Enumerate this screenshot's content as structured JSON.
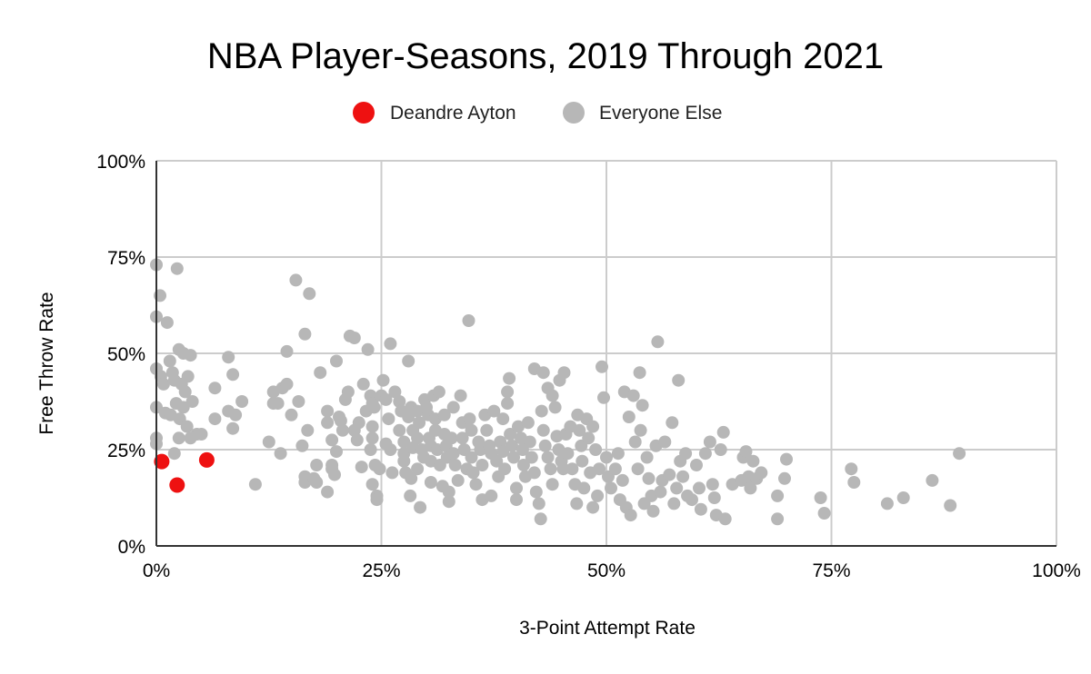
{
  "chart_data": {
    "type": "scatter",
    "title": "NBA Player-Seasons, 2019 Through 2021",
    "xlabel": "3-Point Attempt Rate",
    "ylabel": "Free Throw Rate",
    "xlim": [
      0,
      1
    ],
    "ylim": [
      0,
      1
    ],
    "x_ticks": [
      "0%",
      "25%",
      "50%",
      "75%",
      "100%"
    ],
    "y_ticks": [
      "0%",
      "25%",
      "50%",
      "75%",
      "100%"
    ],
    "grid": true,
    "legend_position": "top",
    "series": [
      {
        "name": "Deandre Ayton",
        "color": "#ee1111",
        "points": [
          [
            0.006,
            0.219
          ],
          [
            0.023,
            0.158
          ],
          [
            0.056,
            0.223
          ]
        ]
      },
      {
        "name": "Everyone Else",
        "color": "#b7b7b7",
        "points": [
          [
            0.0,
            0.73
          ],
          [
            0.0,
            0.595
          ],
          [
            0.004,
            0.65
          ],
          [
            0.023,
            0.72
          ],
          [
            0.012,
            0.58
          ],
          [
            0.0,
            0.46
          ],
          [
            0.005,
            0.44
          ],
          [
            0.008,
            0.42
          ],
          [
            0.01,
            0.345
          ],
          [
            0.0,
            0.36
          ],
          [
            0.0,
            0.28
          ],
          [
            0.0,
            0.265
          ],
          [
            0.015,
            0.48
          ],
          [
            0.018,
            0.45
          ],
          [
            0.025,
            0.51
          ],
          [
            0.03,
            0.5
          ],
          [
            0.038,
            0.495
          ],
          [
            0.02,
            0.43
          ],
          [
            0.028,
            0.42
          ],
          [
            0.035,
            0.44
          ],
          [
            0.032,
            0.4
          ],
          [
            0.022,
            0.37
          ],
          [
            0.03,
            0.36
          ],
          [
            0.04,
            0.375
          ],
          [
            0.016,
            0.34
          ],
          [
            0.026,
            0.33
          ],
          [
            0.034,
            0.31
          ],
          [
            0.045,
            0.29
          ],
          [
            0.05,
            0.29
          ],
          [
            0.038,
            0.28
          ],
          [
            0.025,
            0.28
          ],
          [
            0.02,
            0.24
          ],
          [
            0.065,
            0.41
          ],
          [
            0.065,
            0.33
          ],
          [
            0.08,
            0.49
          ],
          [
            0.085,
            0.445
          ],
          [
            0.08,
            0.35
          ],
          [
            0.088,
            0.34
          ],
          [
            0.095,
            0.375
          ],
          [
            0.085,
            0.305
          ],
          [
            0.11,
            0.16
          ],
          [
            0.125,
            0.27
          ],
          [
            0.13,
            0.37
          ],
          [
            0.13,
            0.4
          ],
          [
            0.135,
            0.37
          ],
          [
            0.14,
            0.41
          ],
          [
            0.145,
            0.42
          ],
          [
            0.138,
            0.24
          ],
          [
            0.145,
            0.505
          ],
          [
            0.155,
            0.69
          ],
          [
            0.165,
            0.55
          ],
          [
            0.17,
            0.655
          ],
          [
            0.15,
            0.34
          ],
          [
            0.158,
            0.375
          ],
          [
            0.162,
            0.26
          ],
          [
            0.168,
            0.3
          ],
          [
            0.165,
            0.18
          ],
          [
            0.165,
            0.165
          ],
          [
            0.175,
            0.175
          ],
          [
            0.178,
            0.21
          ],
          [
            0.178,
            0.165
          ],
          [
            0.182,
            0.45
          ],
          [
            0.19,
            0.35
          ],
          [
            0.19,
            0.32
          ],
          [
            0.19,
            0.14
          ],
          [
            0.195,
            0.2
          ],
          [
            0.198,
            0.185
          ],
          [
            0.195,
            0.21
          ],
          [
            0.195,
            0.275
          ],
          [
            0.2,
            0.245
          ],
          [
            0.2,
            0.48
          ],
          [
            0.203,
            0.335
          ],
          [
            0.205,
            0.325
          ],
          [
            0.207,
            0.3
          ],
          [
            0.21,
            0.38
          ],
          [
            0.213,
            0.4
          ],
          [
            0.215,
            0.545
          ],
          [
            0.22,
            0.54
          ],
          [
            0.22,
            0.3
          ],
          [
            0.223,
            0.275
          ],
          [
            0.225,
            0.32
          ],
          [
            0.23,
            0.42
          ],
          [
            0.228,
            0.205
          ],
          [
            0.233,
            0.35
          ],
          [
            0.235,
            0.51
          ],
          [
            0.238,
            0.39
          ],
          [
            0.24,
            0.37
          ],
          [
            0.242,
            0.36
          ],
          [
            0.24,
            0.31
          ],
          [
            0.24,
            0.28
          ],
          [
            0.238,
            0.25
          ],
          [
            0.24,
            0.16
          ],
          [
            0.245,
            0.13
          ],
          [
            0.245,
            0.12
          ],
          [
            0.243,
            0.21
          ],
          [
            0.248,
            0.2
          ],
          [
            0.25,
            0.39
          ],
          [
            0.252,
            0.43
          ],
          [
            0.255,
            0.38
          ],
          [
            0.258,
            0.33
          ],
          [
            0.255,
            0.265
          ],
          [
            0.26,
            0.25
          ],
          [
            0.26,
            0.525
          ],
          [
            0.262,
            0.19
          ],
          [
            0.265,
            0.4
          ],
          [
            0.27,
            0.375
          ],
          [
            0.272,
            0.35
          ],
          [
            0.27,
            0.3
          ],
          [
            0.275,
            0.27
          ],
          [
            0.275,
            0.24
          ],
          [
            0.275,
            0.22
          ],
          [
            0.277,
            0.19
          ],
          [
            0.28,
            0.48
          ],
          [
            0.28,
            0.335
          ],
          [
            0.283,
            0.36
          ],
          [
            0.285,
            0.3
          ],
          [
            0.285,
            0.255
          ],
          [
            0.283,
            0.175
          ],
          [
            0.282,
            0.13
          ],
          [
            0.29,
            0.35
          ],
          [
            0.292,
            0.32
          ],
          [
            0.29,
            0.28
          ],
          [
            0.29,
            0.2
          ],
          [
            0.293,
            0.1
          ],
          [
            0.295,
            0.25
          ],
          [
            0.297,
            0.23
          ],
          [
            0.298,
            0.38
          ],
          [
            0.3,
            0.36
          ],
          [
            0.302,
            0.34
          ],
          [
            0.303,
            0.28
          ],
          [
            0.305,
            0.26
          ],
          [
            0.305,
            0.22
          ],
          [
            0.305,
            0.165
          ],
          [
            0.308,
            0.39
          ],
          [
            0.31,
            0.33
          ],
          [
            0.31,
            0.3
          ],
          [
            0.312,
            0.25
          ],
          [
            0.314,
            0.4
          ],
          [
            0.315,
            0.21
          ],
          [
            0.318,
            0.155
          ],
          [
            0.32,
            0.34
          ],
          [
            0.32,
            0.29
          ],
          [
            0.322,
            0.26
          ],
          [
            0.323,
            0.23
          ],
          [
            0.325,
            0.115
          ],
          [
            0.325,
            0.14
          ],
          [
            0.328,
            0.28
          ],
          [
            0.33,
            0.36
          ],
          [
            0.33,
            0.24
          ],
          [
            0.332,
            0.21
          ],
          [
            0.335,
            0.17
          ],
          [
            0.338,
            0.39
          ],
          [
            0.34,
            0.32
          ],
          [
            0.34,
            0.28
          ],
          [
            0.342,
            0.25
          ],
          [
            0.345,
            0.2
          ],
          [
            0.347,
            0.585
          ],
          [
            0.348,
            0.33
          ],
          [
            0.35,
            0.3
          ],
          [
            0.35,
            0.23
          ],
          [
            0.352,
            0.19
          ],
          [
            0.355,
            0.16
          ],
          [
            0.358,
            0.27
          ],
          [
            0.36,
            0.25
          ],
          [
            0.362,
            0.21
          ],
          [
            0.362,
            0.12
          ],
          [
            0.365,
            0.34
          ],
          [
            0.367,
            0.3
          ],
          [
            0.37,
            0.26
          ],
          [
            0.372,
            0.24
          ],
          [
            0.372,
            0.13
          ],
          [
            0.375,
            0.35
          ],
          [
            0.378,
            0.22
          ],
          [
            0.38,
            0.18
          ],
          [
            0.382,
            0.27
          ],
          [
            0.385,
            0.33
          ],
          [
            0.385,
            0.245
          ],
          [
            0.387,
            0.2
          ],
          [
            0.39,
            0.4
          ],
          [
            0.39,
            0.37
          ],
          [
            0.392,
            0.435
          ],
          [
            0.393,
            0.29
          ],
          [
            0.395,
            0.26
          ],
          [
            0.397,
            0.23
          ],
          [
            0.4,
            0.15
          ],
          [
            0.4,
            0.12
          ],
          [
            0.402,
            0.31
          ],
          [
            0.405,
            0.28
          ],
          [
            0.407,
            0.25
          ],
          [
            0.408,
            0.21
          ],
          [
            0.41,
            0.18
          ],
          [
            0.413,
            0.32
          ],
          [
            0.415,
            0.27
          ],
          [
            0.417,
            0.23
          ],
          [
            0.42,
            0.46
          ],
          [
            0.42,
            0.19
          ],
          [
            0.422,
            0.14
          ],
          [
            0.425,
            0.11
          ],
          [
            0.427,
            0.07
          ],
          [
            0.428,
            0.35
          ],
          [
            0.43,
            0.45
          ],
          [
            0.43,
            0.3
          ],
          [
            0.432,
            0.26
          ],
          [
            0.435,
            0.41
          ],
          [
            0.435,
            0.23
          ],
          [
            0.438,
            0.2
          ],
          [
            0.44,
            0.39
          ],
          [
            0.44,
            0.16
          ],
          [
            0.443,
            0.36
          ],
          [
            0.445,
            0.285
          ],
          [
            0.447,
            0.25
          ],
          [
            0.448,
            0.43
          ],
          [
            0.45,
            0.22
          ],
          [
            0.452,
            0.2
          ],
          [
            0.453,
            0.45
          ],
          [
            0.455,
            0.29
          ],
          [
            0.457,
            0.24
          ],
          [
            0.46,
            0.31
          ],
          [
            0.462,
            0.2
          ],
          [
            0.465,
            0.16
          ],
          [
            0.467,
            0.11
          ],
          [
            0.468,
            0.34
          ],
          [
            0.47,
            0.3
          ],
          [
            0.472,
            0.26
          ],
          [
            0.473,
            0.22
          ],
          [
            0.475,
            0.15
          ],
          [
            0.478,
            0.33
          ],
          [
            0.48,
            0.28
          ],
          [
            0.482,
            0.19
          ],
          [
            0.485,
            0.1
          ],
          [
            0.485,
            0.31
          ],
          [
            0.488,
            0.25
          ],
          [
            0.49,
            0.13
          ],
          [
            0.492,
            0.2
          ],
          [
            0.495,
            0.465
          ],
          [
            0.497,
            0.385
          ],
          [
            0.5,
            0.23
          ],
          [
            0.502,
            0.18
          ],
          [
            0.505,
            0.15
          ],
          [
            0.51,
            0.2
          ],
          [
            0.513,
            0.24
          ],
          [
            0.515,
            0.12
          ],
          [
            0.518,
            0.17
          ],
          [
            0.52,
            0.4
          ],
          [
            0.522,
            0.1
          ],
          [
            0.525,
            0.335
          ],
          [
            0.527,
            0.08
          ],
          [
            0.53,
            0.39
          ],
          [
            0.532,
            0.27
          ],
          [
            0.535,
            0.2
          ],
          [
            0.537,
            0.45
          ],
          [
            0.538,
            0.3
          ],
          [
            0.54,
            0.365
          ],
          [
            0.542,
            0.11
          ],
          [
            0.545,
            0.23
          ],
          [
            0.547,
            0.175
          ],
          [
            0.55,
            0.13
          ],
          [
            0.552,
            0.09
          ],
          [
            0.555,
            0.26
          ],
          [
            0.557,
            0.53
          ],
          [
            0.56,
            0.14
          ],
          [
            0.562,
            0.17
          ],
          [
            0.565,
            0.27
          ],
          [
            0.57,
            0.185
          ],
          [
            0.573,
            0.32
          ],
          [
            0.575,
            0.11
          ],
          [
            0.578,
            0.15
          ],
          [
            0.58,
            0.43
          ],
          [
            0.582,
            0.22
          ],
          [
            0.585,
            0.18
          ],
          [
            0.588,
            0.24
          ],
          [
            0.59,
            0.13
          ],
          [
            0.595,
            0.12
          ],
          [
            0.6,
            0.21
          ],
          [
            0.603,
            0.15
          ],
          [
            0.605,
            0.095
          ],
          [
            0.61,
            0.24
          ],
          [
            0.615,
            0.27
          ],
          [
            0.618,
            0.16
          ],
          [
            0.62,
            0.125
          ],
          [
            0.622,
            0.08
          ],
          [
            0.627,
            0.25
          ],
          [
            0.63,
            0.295
          ],
          [
            0.632,
            0.07
          ],
          [
            0.64,
            0.16
          ],
          [
            0.65,
            0.17
          ],
          [
            0.652,
            0.23
          ],
          [
            0.655,
            0.245
          ],
          [
            0.658,
            0.18
          ],
          [
            0.66,
            0.15
          ],
          [
            0.663,
            0.22
          ],
          [
            0.667,
            0.175
          ],
          [
            0.672,
            0.19
          ],
          [
            0.69,
            0.13
          ],
          [
            0.69,
            0.07
          ],
          [
            0.698,
            0.175
          ],
          [
            0.7,
            0.225
          ],
          [
            0.738,
            0.125
          ],
          [
            0.742,
            0.085
          ],
          [
            0.772,
            0.2
          ],
          [
            0.775,
            0.165
          ],
          [
            0.812,
            0.11
          ],
          [
            0.83,
            0.125
          ],
          [
            0.862,
            0.17
          ],
          [
            0.882,
            0.105
          ],
          [
            0.892,
            0.24
          ]
        ]
      }
    ]
  }
}
